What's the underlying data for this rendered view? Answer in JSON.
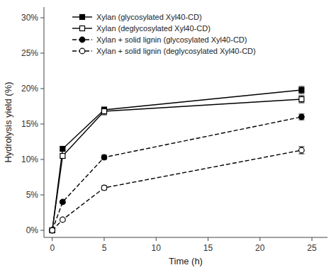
{
  "chart_data": {
    "type": "line",
    "x": [
      0,
      1,
      5,
      24
    ],
    "series": [
      {
        "name": "Xylan (glycosylated Xyl40-CD)",
        "color": "#000000",
        "marker": "square",
        "line_style": "solid",
        "values": [
          0.0,
          0.115,
          0.17,
          0.198
        ],
        "errors": [
          0.0,
          0.003,
          0.004,
          0.005
        ]
      },
      {
        "name": "Xylan (deglycosylated Xyl40-CD)",
        "color": "#000000",
        "marker": "open-square",
        "line_style": "solid",
        "values": [
          0.0,
          0.105,
          0.168,
          0.185
        ],
        "errors": [
          0.0,
          0.003,
          0.005,
          0.005
        ]
      },
      {
        "name": "Xylan + solid lignin (glycosylated Xyl40-CD)",
        "color": "#000000",
        "marker": "circle",
        "line_style": "dashed",
        "values": [
          0.0,
          0.04,
          0.103,
          0.16
        ],
        "errors": [
          0.0,
          0.002,
          0.003,
          0.004
        ]
      },
      {
        "name": "Xylan + solid lignin (deglycosylated Xyl40-CD)",
        "color": "#000000",
        "marker": "open-circle",
        "line_style": "dashed",
        "values": [
          0.0,
          0.015,
          0.06,
          0.113
        ],
        "errors": [
          0.0,
          0.002,
          0.003,
          0.005
        ]
      }
    ],
    "x_label": "Time (h)",
    "y_label": "Hydrolysis yield (%)",
    "xlim": [
      -0.8,
      26.5
    ],
    "ylim": [
      -0.01,
      0.315
    ],
    "xticks": [
      0,
      5,
      10,
      15,
      20,
      25
    ],
    "yticks": [
      {
        "value": 0.0,
        "label": "0%"
      },
      {
        "value": 0.05,
        "label": "5%"
      },
      {
        "value": 0.1,
        "label": "10%"
      },
      {
        "value": 0.15,
        "label": "15%"
      },
      {
        "value": 0.2,
        "label": "20%"
      },
      {
        "value": 0.25,
        "label": "25%"
      },
      {
        "value": 0.3,
        "label": "30%"
      }
    ],
    "grid": false,
    "legend": "upper left"
  }
}
